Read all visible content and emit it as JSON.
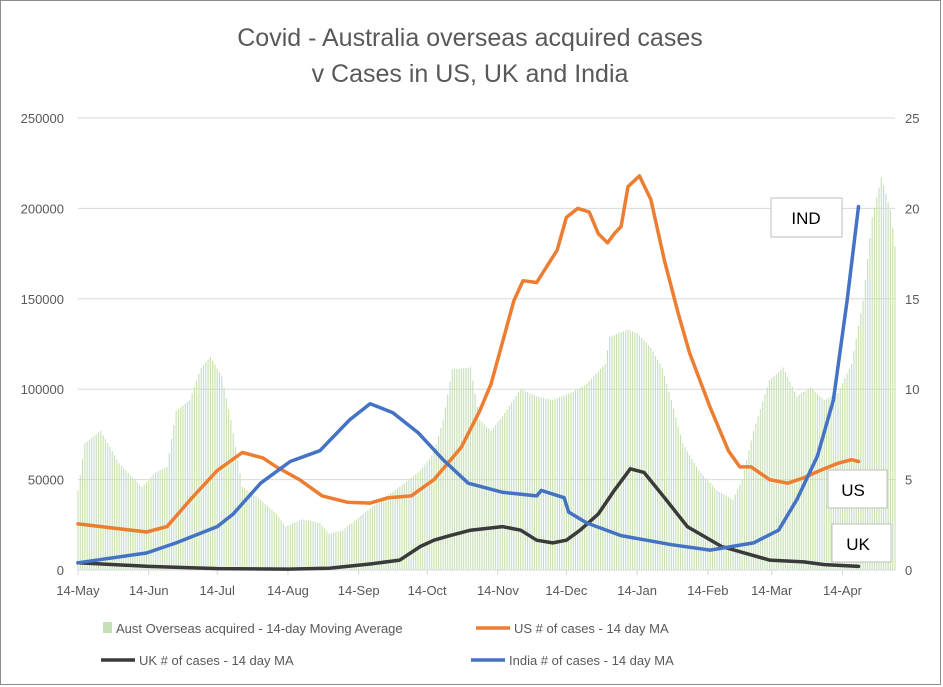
{
  "chart_data": {
    "type": "line",
    "title_lines": [
      "Covid - Australia overseas acquired cases",
      "v Cases in US, UK and India"
    ],
    "x_tick_labels": [
      "14-May",
      "14-Jun",
      "14-Jul",
      "14-Aug",
      "14-Sep",
      "14-Oct",
      "14-Nov",
      "14-Dec",
      "14-Jan",
      "14-Feb",
      "14-Mar",
      "14-Apr"
    ],
    "x_tick_dates": [
      "2020-05-14",
      "2020-06-14",
      "2020-07-14",
      "2020-08-14",
      "2020-09-14",
      "2020-10-14",
      "2020-11-14",
      "2020-12-14",
      "2021-01-14",
      "2021-02-14",
      "2021-03-14",
      "2021-04-14"
    ],
    "xlim": [
      "2020-05-14",
      "2021-05-07"
    ],
    "y_left": {
      "lim": [
        0,
        250000
      ],
      "ticks": [
        0,
        50000,
        100000,
        150000,
        200000,
        250000
      ]
    },
    "y_right": {
      "lim": [
        0,
        25
      ],
      "ticks": [
        0,
        5,
        10,
        15,
        20,
        25
      ]
    },
    "grid": true,
    "legend_placement": "bottom",
    "series": [
      {
        "name": "Aust Overseas acquired - 14-day Moving Average",
        "type": "bar",
        "axis": "right",
        "color": "#c5e0b4",
        "points": [
          [
            "2020-05-14",
            4.4
          ],
          [
            "2020-05-17",
            7
          ],
          [
            "2020-05-24",
            7.7
          ],
          [
            "2020-05-28",
            6.8
          ],
          [
            "2020-06-01",
            5.9
          ],
          [
            "2020-06-07",
            5.1
          ],
          [
            "2020-06-11",
            4.6
          ],
          [
            "2020-06-17",
            5.4
          ],
          [
            "2020-06-22",
            5.7
          ],
          [
            "2020-06-26",
            8.8
          ],
          [
            "2020-07-02",
            9.4
          ],
          [
            "2020-07-07",
            11.2
          ],
          [
            "2020-07-11",
            11.8
          ],
          [
            "2020-07-16",
            10.7
          ],
          [
            "2020-07-20",
            8.3
          ],
          [
            "2020-07-25",
            4.6
          ],
          [
            "2020-08-01",
            4.0
          ],
          [
            "2020-08-09",
            3.1
          ],
          [
            "2020-08-13",
            2.4
          ],
          [
            "2020-08-20",
            2.8
          ],
          [
            "2020-08-28",
            2.6
          ],
          [
            "2020-09-01",
            2.0
          ],
          [
            "2020-09-07",
            2.2
          ],
          [
            "2020-09-14",
            2.9
          ],
          [
            "2020-09-25",
            4.0
          ],
          [
            "2020-10-02",
            4.6
          ],
          [
            "2020-10-11",
            5.5
          ],
          [
            "2020-10-17",
            6.5
          ],
          [
            "2020-10-21",
            8.3
          ],
          [
            "2020-10-25",
            11.1
          ],
          [
            "2020-11-02",
            11.2
          ],
          [
            "2020-11-06",
            8.3
          ],
          [
            "2020-11-11",
            7.7
          ],
          [
            "2020-11-16",
            8.5
          ],
          [
            "2020-11-24",
            10
          ],
          [
            "2020-12-01",
            9.6
          ],
          [
            "2020-12-08",
            9.4
          ],
          [
            "2020-12-16",
            9.8
          ],
          [
            "2020-12-23",
            10.3
          ],
          [
            "2020-12-31",
            11.4
          ],
          [
            "2021-01-02",
            12.9
          ],
          [
            "2021-01-10",
            13.3
          ],
          [
            "2021-01-14",
            13.1
          ],
          [
            "2021-01-20",
            12.3
          ],
          [
            "2021-01-25",
            11.2
          ],
          [
            "2021-01-29",
            9.4
          ],
          [
            "2021-02-03",
            7.0
          ],
          [
            "2021-02-10",
            5.5
          ],
          [
            "2021-02-18",
            4.4
          ],
          [
            "2021-02-25",
            3.9
          ],
          [
            "2021-03-01",
            5.0
          ],
          [
            "2021-03-06",
            7.7
          ],
          [
            "2021-03-13",
            10.5
          ],
          [
            "2021-03-19",
            11.2
          ],
          [
            "2021-03-25",
            9.6
          ],
          [
            "2021-03-31",
            10.1
          ],
          [
            "2021-04-06",
            9.4
          ],
          [
            "2021-04-12",
            9.8
          ],
          [
            "2021-04-18",
            11.4
          ],
          [
            "2021-04-23",
            14.9
          ],
          [
            "2021-04-27",
            19.5
          ],
          [
            "2021-05-01",
            21.7
          ],
          [
            "2021-05-05",
            19.9
          ],
          [
            "2021-05-07",
            17.9
          ]
        ]
      },
      {
        "name": "US # of cases - 14 day MA",
        "type": "line",
        "axis": "left",
        "color": "#ed7d31",
        "end_label": "US",
        "points": [
          [
            "2020-05-14",
            25500
          ],
          [
            "2020-06-13",
            21000
          ],
          [
            "2020-06-22",
            24000
          ],
          [
            "2020-07-03",
            40000
          ],
          [
            "2020-07-14",
            55000
          ],
          [
            "2020-07-25",
            65000
          ],
          [
            "2020-08-03",
            62000
          ],
          [
            "2020-08-09",
            57000
          ],
          [
            "2020-08-19",
            50000
          ],
          [
            "2020-08-29",
            41000
          ],
          [
            "2020-09-09",
            37500
          ],
          [
            "2020-09-19",
            37000
          ],
          [
            "2020-09-27",
            40000
          ],
          [
            "2020-10-07",
            41000
          ],
          [
            "2020-10-17",
            50000
          ],
          [
            "2020-10-29",
            68000
          ],
          [
            "2020-11-06",
            88000
          ],
          [
            "2020-11-11",
            103000
          ],
          [
            "2020-11-21",
            149000
          ],
          [
            "2020-11-25",
            160000
          ],
          [
            "2020-12-01",
            159000
          ],
          [
            "2020-12-10",
            177000
          ],
          [
            "2020-12-14",
            195000
          ],
          [
            "2020-12-19",
            200000
          ],
          [
            "2020-12-24",
            198000
          ],
          [
            "2020-12-28",
            186000
          ],
          [
            "2021-01-01",
            181000
          ],
          [
            "2021-01-04",
            186000
          ],
          [
            "2021-01-07",
            190000
          ],
          [
            "2021-01-10",
            212000
          ],
          [
            "2021-01-15",
            218000
          ],
          [
            "2021-01-20",
            205000
          ],
          [
            "2021-01-26",
            171000
          ],
          [
            "2021-02-01",
            142000
          ],
          [
            "2021-02-06",
            120000
          ],
          [
            "2021-02-15",
            90000
          ],
          [
            "2021-02-23",
            66000
          ],
          [
            "2021-02-28",
            57000
          ],
          [
            "2021-03-05",
            57000
          ],
          [
            "2021-03-13",
            50000
          ],
          [
            "2021-03-21",
            48000
          ],
          [
            "2021-03-28",
            51000
          ],
          [
            "2021-04-04",
            55000
          ],
          [
            "2021-04-12",
            59000
          ],
          [
            "2021-04-18",
            61000
          ],
          [
            "2021-04-21",
            60000
          ]
        ]
      },
      {
        "name": "UK # of cases - 14 day MA",
        "type": "line",
        "axis": "left",
        "color": "#3a3a3a",
        "end_label": "UK",
        "points": [
          [
            "2020-05-14",
            4000
          ],
          [
            "2020-06-14",
            2000
          ],
          [
            "2020-07-14",
            800
          ],
          [
            "2020-08-14",
            500
          ],
          [
            "2020-09-01",
            1000
          ],
          [
            "2020-09-20",
            3500
          ],
          [
            "2020-10-02",
            5500
          ],
          [
            "2020-10-11",
            13000
          ],
          [
            "2020-10-17",
            16500
          ],
          [
            "2020-10-24",
            19000
          ],
          [
            "2020-11-02",
            22000
          ],
          [
            "2020-11-16",
            24000
          ],
          [
            "2020-11-24",
            22000
          ],
          [
            "2020-12-01",
            16500
          ],
          [
            "2020-12-08",
            15000
          ],
          [
            "2020-12-14",
            16500
          ],
          [
            "2020-12-20",
            22000
          ],
          [
            "2020-12-28",
            31000
          ],
          [
            "2021-01-04",
            44000
          ],
          [
            "2021-01-11",
            56000
          ],
          [
            "2021-01-17",
            54000
          ],
          [
            "2021-01-26",
            40000
          ],
          [
            "2021-02-05",
            24000
          ],
          [
            "2021-02-20",
            13000
          ],
          [
            "2021-03-13",
            5500
          ],
          [
            "2021-03-28",
            4500
          ],
          [
            "2021-04-06",
            3000
          ],
          [
            "2021-04-21",
            2000
          ]
        ]
      },
      {
        "name": "India # of cases - 14 day MA",
        "type": "line",
        "axis": "left",
        "color": "#4472c4",
        "end_label": "IND",
        "points": [
          [
            "2020-05-14",
            4000
          ],
          [
            "2020-06-13",
            9400
          ],
          [
            "2020-06-26",
            15000
          ],
          [
            "2020-07-14",
            24000
          ],
          [
            "2020-07-21",
            31000
          ],
          [
            "2020-08-02",
            48000
          ],
          [
            "2020-08-15",
            60000
          ],
          [
            "2020-08-28",
            66000
          ],
          [
            "2020-09-10",
            83000
          ],
          [
            "2020-09-19",
            92000
          ],
          [
            "2020-09-29",
            87000
          ],
          [
            "2020-10-10",
            76000
          ],
          [
            "2020-10-21",
            61000
          ],
          [
            "2020-11-01",
            48000
          ],
          [
            "2020-11-16",
            43000
          ],
          [
            "2020-12-01",
            41000
          ],
          [
            "2020-12-03",
            44000
          ],
          [
            "2020-12-13",
            40000
          ],
          [
            "2020-12-15",
            32000
          ],
          [
            "2020-12-23",
            26000
          ],
          [
            "2021-01-07",
            19000
          ],
          [
            "2021-01-29",
            14000
          ],
          [
            "2021-02-15",
            11000
          ],
          [
            "2021-03-06",
            15000
          ],
          [
            "2021-03-17",
            22000
          ],
          [
            "2021-03-25",
            39000
          ],
          [
            "2021-04-03",
            63000
          ],
          [
            "2021-04-10",
            94000
          ],
          [
            "2021-04-16",
            149000
          ],
          [
            "2021-04-21",
            201000
          ]
        ]
      }
    ]
  }
}
